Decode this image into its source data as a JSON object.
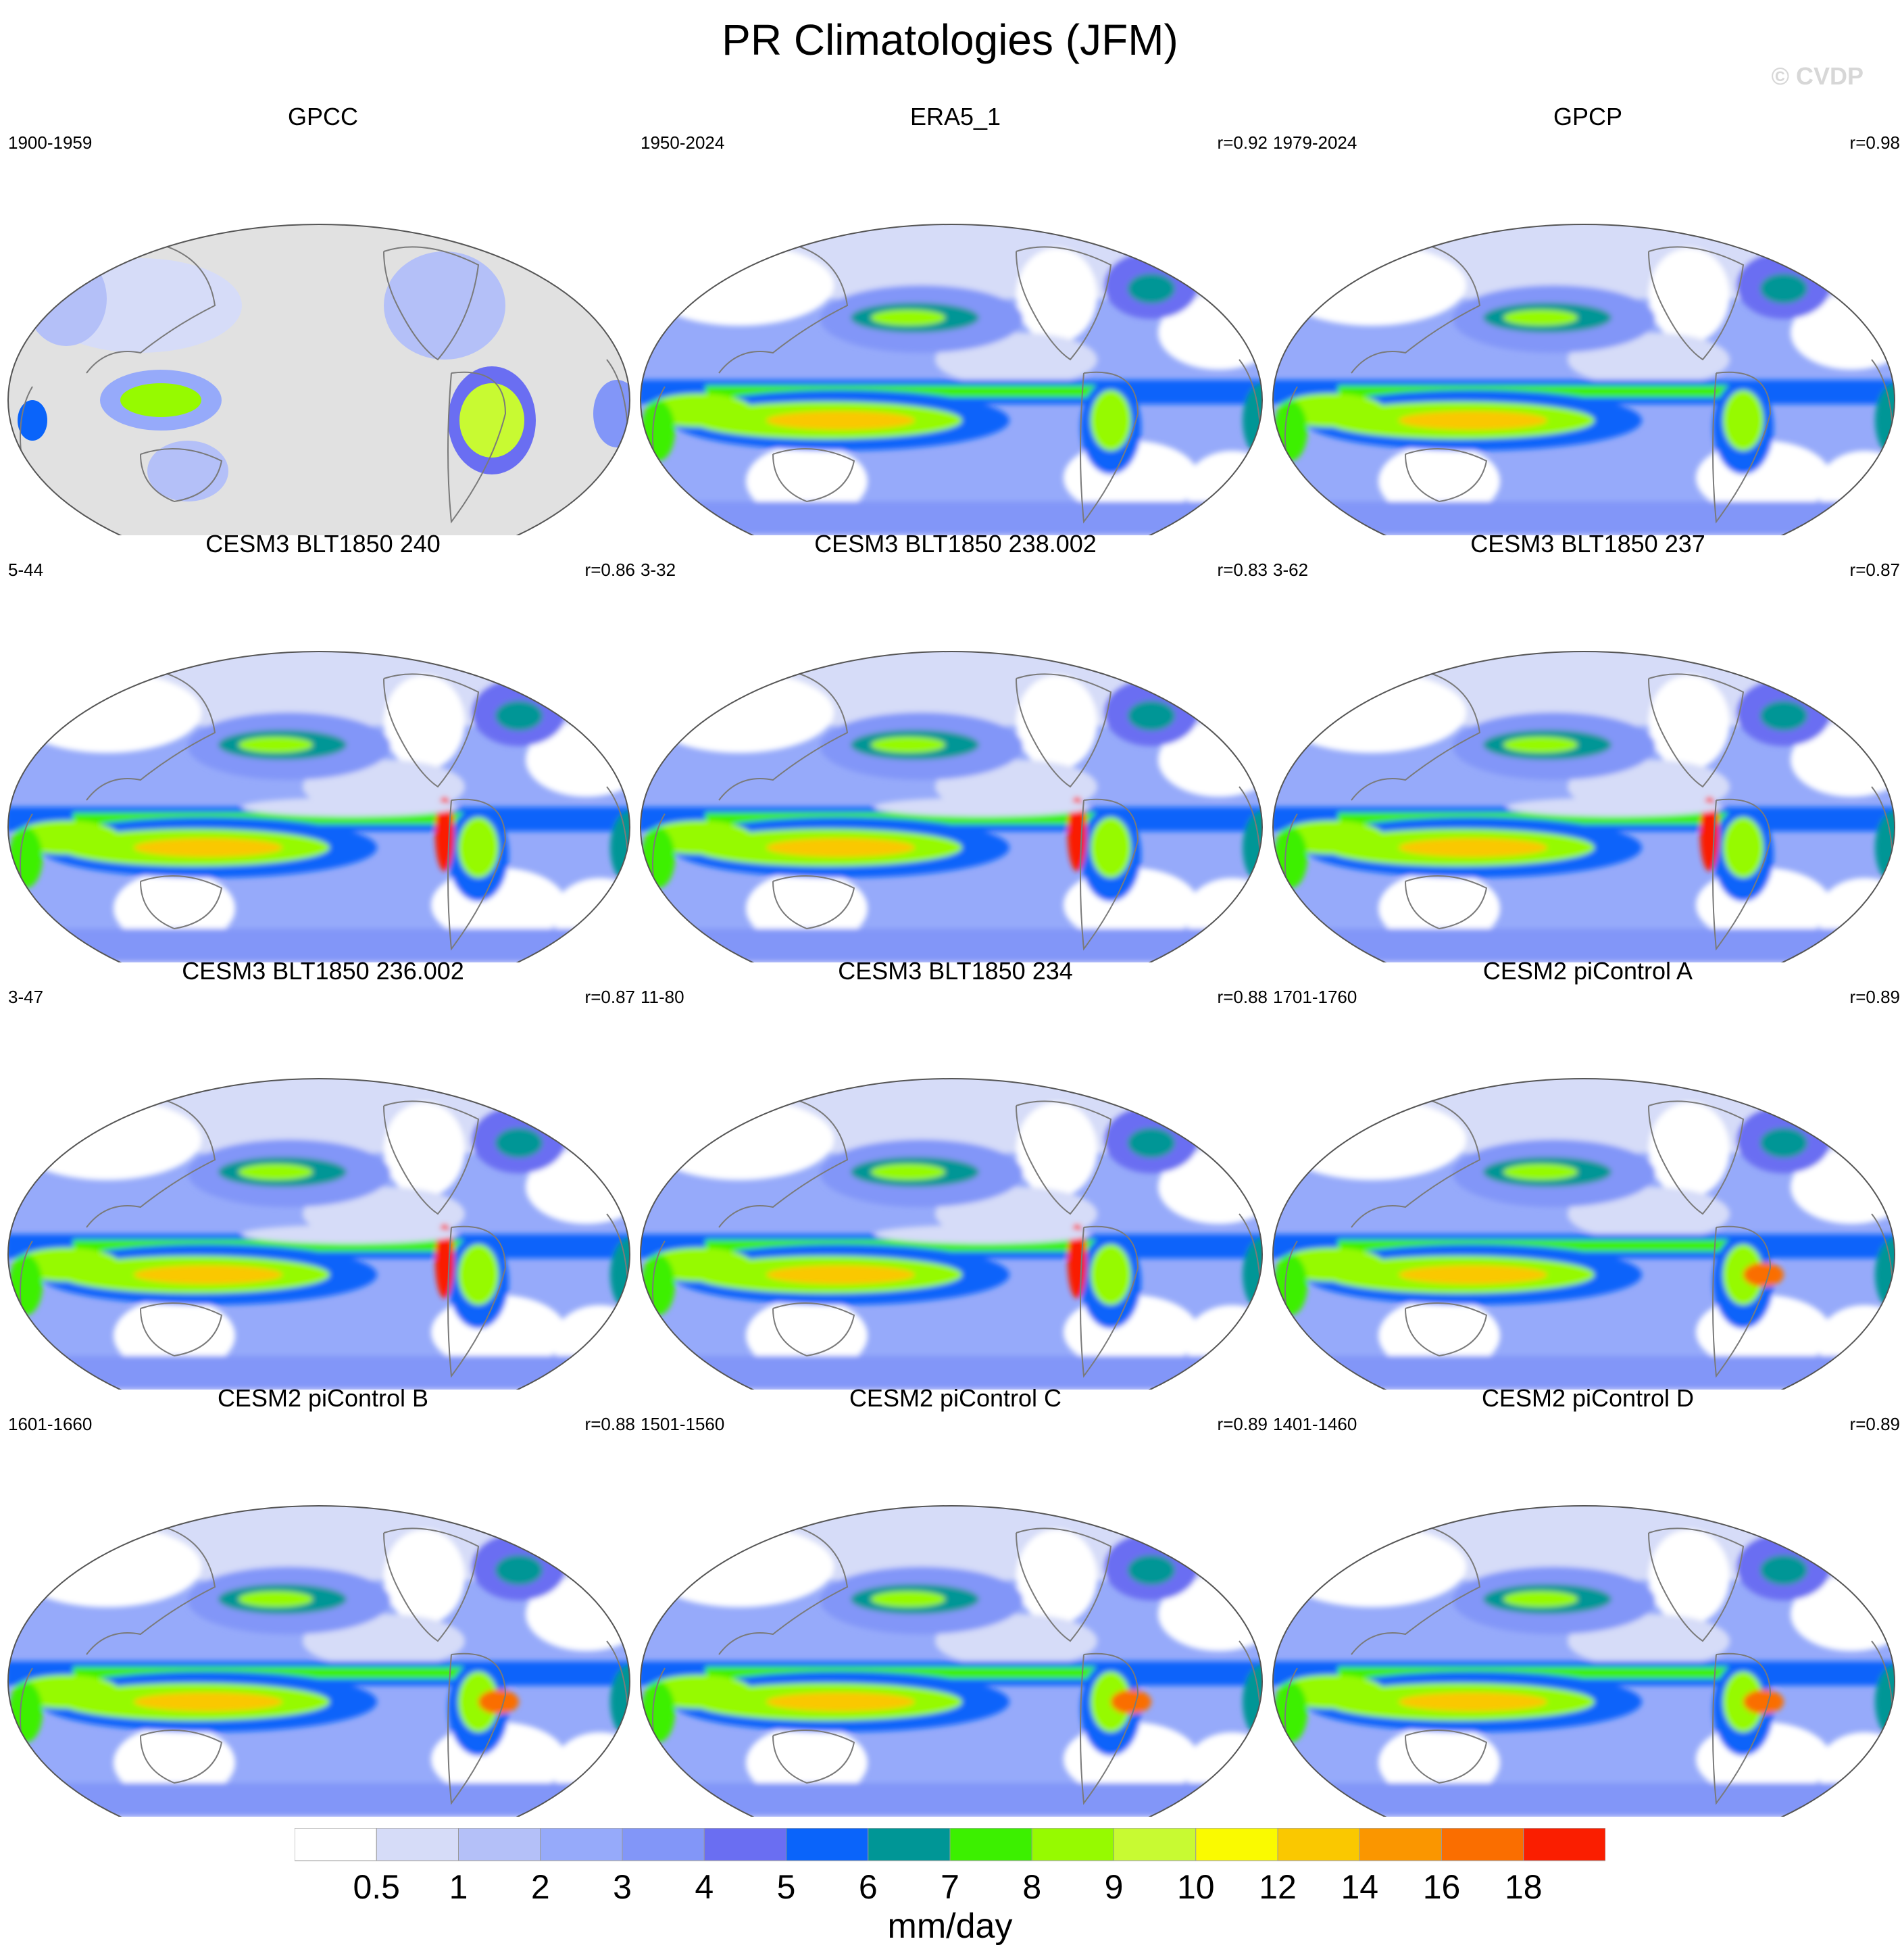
{
  "title": "PR Climatologies (JFM)",
  "watermark": "© CVDP",
  "panels": [
    {
      "title": "GPCC",
      "period": "1900-1959",
      "corr": "",
      "kind": "obs-land"
    },
    {
      "title": "ERA5_1",
      "period": "1950-2024",
      "corr": "r=0.92",
      "kind": "reanalysis"
    },
    {
      "title": "GPCP",
      "period": "1979-2024",
      "corr": "r=0.98",
      "kind": "obs"
    },
    {
      "title": "CESM3 BLT1850 240",
      "period": "5-44",
      "corr": "r=0.86",
      "kind": "model3"
    },
    {
      "title": "CESM3 BLT1850 238.002",
      "period": "3-32",
      "corr": "r=0.83",
      "kind": "model3"
    },
    {
      "title": "CESM3 BLT1850 237",
      "period": "3-62",
      "corr": "r=0.87",
      "kind": "model3"
    },
    {
      "title": "CESM3 BLT1850 236.002",
      "period": "3-47",
      "corr": "r=0.87",
      "kind": "model3"
    },
    {
      "title": "CESM3 BLT1850 234",
      "period": "11-80",
      "corr": "r=0.88",
      "kind": "model3"
    },
    {
      "title": "CESM2 piControl A",
      "period": "1701-1760",
      "corr": "r=0.89",
      "kind": "model2"
    },
    {
      "title": "CESM2 piControl B",
      "period": "1601-1660",
      "corr": "r=0.88",
      "kind": "model2"
    },
    {
      "title": "CESM2 piControl C",
      "period": "1501-1560",
      "corr": "r=0.89",
      "kind": "model2"
    },
    {
      "title": "CESM2 piControl D",
      "period": "1401-1460",
      "corr": "r=0.89",
      "kind": "model2"
    }
  ],
  "colorbar": {
    "unit": "mm/day",
    "tick_labels": [
      "0.5",
      "1",
      "2",
      "3",
      "4",
      "5",
      "6",
      "7",
      "8",
      "9",
      "10",
      "12",
      "14",
      "16",
      "18"
    ],
    "colors": [
      "#ffffff",
      "#d6dcf8",
      "#b4c0f8",
      "#96aafa",
      "#8296f8",
      "#6a6ef2",
      "#0a64fa",
      "#009696",
      "#3cf000",
      "#96fa00",
      "#c8fa32",
      "#fafa00",
      "#fac800",
      "#fa9600",
      "#fa6e00",
      "#fa1e00"
    ]
  }
}
